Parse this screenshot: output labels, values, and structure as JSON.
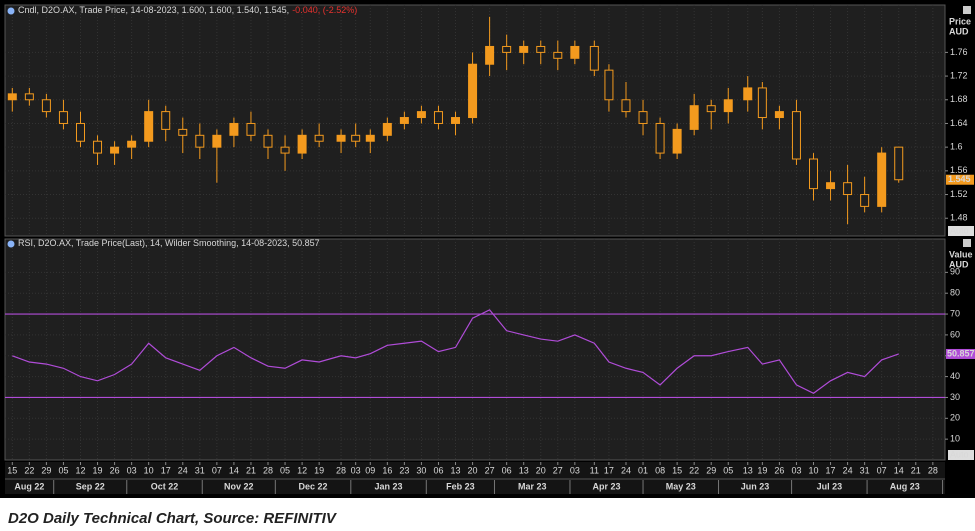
{
  "chart_data": [
    {
      "type": "candlestick",
      "header": "Cndl, D2O.AX, Trade Price, 14-08-2023, 1.600, 1.600, 1.540, 1.545,",
      "change": "-0.040, (-2.52%)",
      "axis_title": "Price",
      "axis_unit": "AUD",
      "scale_button": "Auto",
      "color": "#f39a1e",
      "change_color": "#e8322e",
      "x": [
        "2022-08-15",
        "2022-08-22",
        "2022-08-29",
        "2022-09-05",
        "2022-09-12",
        "2022-09-19",
        "2022-09-26",
        "2022-10-03",
        "2022-10-10",
        "2022-10-17",
        "2022-10-24",
        "2022-10-31",
        "2022-11-07",
        "2022-11-14",
        "2022-11-21",
        "2022-11-28",
        "2022-12-05",
        "2022-12-12",
        "2022-12-19",
        "2022-12-28",
        "2023-01-03",
        "2023-01-09",
        "2023-01-16",
        "2023-01-23",
        "2023-01-30",
        "2023-02-06",
        "2023-02-13",
        "2023-02-20",
        "2023-02-27",
        "2023-03-06",
        "2023-03-13",
        "2023-03-20",
        "2023-03-27",
        "2023-04-03",
        "2023-04-11",
        "2023-04-17",
        "2023-04-24",
        "2023-05-01",
        "2023-05-08",
        "2023-05-15",
        "2023-05-22",
        "2023-05-29",
        "2023-06-05",
        "2023-06-13",
        "2023-06-19",
        "2023-06-26",
        "2023-07-03",
        "2023-07-10",
        "2023-07-17",
        "2023-07-24",
        "2023-07-31",
        "2023-08-07",
        "2023-08-14"
      ],
      "open": [
        1.68,
        1.69,
        1.68,
        1.66,
        1.64,
        1.61,
        1.59,
        1.6,
        1.61,
        1.66,
        1.63,
        1.62,
        1.6,
        1.62,
        1.64,
        1.62,
        1.6,
        1.59,
        1.62,
        1.61,
        1.62,
        1.61,
        1.62,
        1.64,
        1.65,
        1.66,
        1.64,
        1.65,
        1.74,
        1.77,
        1.76,
        1.77,
        1.76,
        1.75,
        1.77,
        1.73,
        1.68,
        1.66,
        1.64,
        1.59,
        1.63,
        1.67,
        1.66,
        1.68,
        1.7,
        1.65,
        1.66,
        1.58,
        1.53,
        1.54,
        1.52,
        1.5,
        1.6
      ],
      "high": [
        1.7,
        1.7,
        1.69,
        1.68,
        1.66,
        1.62,
        1.61,
        1.62,
        1.68,
        1.67,
        1.65,
        1.64,
        1.63,
        1.65,
        1.66,
        1.63,
        1.62,
        1.63,
        1.64,
        1.63,
        1.64,
        1.63,
        1.65,
        1.66,
        1.67,
        1.67,
        1.66,
        1.76,
        1.82,
        1.79,
        1.78,
        1.78,
        1.78,
        1.78,
        1.78,
        1.74,
        1.71,
        1.68,
        1.65,
        1.64,
        1.69,
        1.68,
        1.7,
        1.72,
        1.71,
        1.67,
        1.68,
        1.59,
        1.56,
        1.57,
        1.55,
        1.6,
        1.6
      ],
      "low": [
        1.66,
        1.67,
        1.65,
        1.63,
        1.6,
        1.57,
        1.57,
        1.58,
        1.6,
        1.61,
        1.59,
        1.58,
        1.54,
        1.6,
        1.61,
        1.58,
        1.56,
        1.58,
        1.6,
        1.59,
        1.6,
        1.59,
        1.61,
        1.63,
        1.64,
        1.63,
        1.62,
        1.64,
        1.72,
        1.73,
        1.74,
        1.74,
        1.73,
        1.74,
        1.72,
        1.66,
        1.65,
        1.62,
        1.58,
        1.58,
        1.62,
        1.63,
        1.64,
        1.66,
        1.63,
        1.63,
        1.57,
        1.51,
        1.51,
        1.47,
        1.49,
        1.49,
        1.54
      ],
      "close": [
        1.69,
        1.68,
        1.66,
        1.64,
        1.61,
        1.59,
        1.6,
        1.61,
        1.66,
        1.63,
        1.62,
        1.6,
        1.62,
        1.64,
        1.62,
        1.6,
        1.59,
        1.62,
        1.61,
        1.62,
        1.61,
        1.62,
        1.64,
        1.65,
        1.66,
        1.64,
        1.65,
        1.74,
        1.77,
        1.76,
        1.77,
        1.76,
        1.75,
        1.77,
        1.73,
        1.68,
        1.66,
        1.64,
        1.59,
        1.63,
        1.67,
        1.66,
        1.68,
        1.7,
        1.65,
        1.66,
        1.58,
        1.53,
        1.54,
        1.52,
        1.5,
        1.59,
        1.545
      ],
      "xlim": [
        "2022-08-12",
        "2023-09-02"
      ],
      "ylim": [
        1.45,
        1.84
      ],
      "yticks": [
        1.48,
        1.52,
        1.56,
        1.6,
        1.64,
        1.68,
        1.72,
        1.76
      ],
      "grid": true
    },
    {
      "type": "line",
      "header": "RSI, D2O.AX, Trade Price(Last), 14, Wilder Smoothing, 14-08-2023, 50.857",
      "axis_title": "Value",
      "axis_unit": "AUD",
      "scale_button": "Auto",
      "color": "#b04cd8",
      "x": [
        "2022-08-15",
        "2022-08-22",
        "2022-08-29",
        "2022-09-05",
        "2022-09-12",
        "2022-09-19",
        "2022-09-26",
        "2022-10-03",
        "2022-10-10",
        "2022-10-17",
        "2022-10-24",
        "2022-10-31",
        "2022-11-07",
        "2022-11-14",
        "2022-11-21",
        "2022-11-28",
        "2022-12-05",
        "2022-12-12",
        "2022-12-19",
        "2022-12-28",
        "2023-01-03",
        "2023-01-09",
        "2023-01-16",
        "2023-01-23",
        "2023-01-30",
        "2023-02-06",
        "2023-02-13",
        "2023-02-20",
        "2023-02-27",
        "2023-03-06",
        "2023-03-13",
        "2023-03-20",
        "2023-03-27",
        "2023-04-03",
        "2023-04-11",
        "2023-04-17",
        "2023-04-24",
        "2023-05-01",
        "2023-05-08",
        "2023-05-15",
        "2023-05-22",
        "2023-05-29",
        "2023-06-05",
        "2023-06-13",
        "2023-06-19",
        "2023-06-26",
        "2023-07-03",
        "2023-07-10",
        "2023-07-17",
        "2023-07-24",
        "2023-07-31",
        "2023-08-07",
        "2023-08-14"
      ],
      "values": [
        50,
        47,
        46,
        44,
        40,
        38,
        41,
        46,
        56,
        49,
        46,
        43,
        50,
        54,
        49,
        45,
        44,
        48,
        47,
        50,
        49,
        51,
        55,
        56,
        57,
        52,
        54,
        68,
        72,
        62,
        60,
        58,
        57,
        60,
        56,
        47,
        44,
        42,
        36,
        44,
        50,
        50,
        52,
        54,
        46,
        48,
        36,
        32,
        38,
        42,
        40,
        48,
        50.857
      ],
      "reference_lines": [
        70,
        30
      ],
      "xlim": [
        "2022-08-12",
        "2023-09-02"
      ],
      "ylim": [
        0,
        106
      ],
      "yticks": [
        10,
        20,
        30,
        40,
        50,
        60,
        70,
        80,
        90
      ],
      "grid": true,
      "xticks": [
        {
          "value": "2022-08-15",
          "label": "15"
        },
        {
          "value": "2022-08-22",
          "label": "22"
        },
        {
          "value": "2022-08-29",
          "label": "29"
        },
        {
          "value": "2022-09-05",
          "label": "05"
        },
        {
          "value": "2022-09-12",
          "label": "12"
        },
        {
          "value": "2022-09-19",
          "label": "19"
        },
        {
          "value": "2022-09-26",
          "label": "26"
        },
        {
          "value": "2022-10-03",
          "label": "03"
        },
        {
          "value": "2022-10-10",
          "label": "10"
        },
        {
          "value": "2022-10-17",
          "label": "17"
        },
        {
          "value": "2022-10-24",
          "label": "24"
        },
        {
          "value": "2022-10-31",
          "label": "31"
        },
        {
          "value": "2022-11-07",
          "label": "07"
        },
        {
          "value": "2022-11-14",
          "label": "14"
        },
        {
          "value": "2022-11-21",
          "label": "21"
        },
        {
          "value": "2022-11-28",
          "label": "28"
        },
        {
          "value": "2022-12-05",
          "label": "05"
        },
        {
          "value": "2022-12-12",
          "label": "12"
        },
        {
          "value": "2022-12-19",
          "label": "19"
        },
        {
          "value": "2022-12-28",
          "label": "28"
        },
        {
          "value": "2023-01-03",
          "label": "03"
        },
        {
          "value": "2023-01-09",
          "label": "09"
        },
        {
          "value": "2023-01-16",
          "label": "16"
        },
        {
          "value": "2023-01-23",
          "label": "23"
        },
        {
          "value": "2023-01-30",
          "label": "30"
        },
        {
          "value": "2023-02-06",
          "label": "06"
        },
        {
          "value": "2023-02-13",
          "label": "13"
        },
        {
          "value": "2023-02-20",
          "label": "20"
        },
        {
          "value": "2023-02-27",
          "label": "27"
        },
        {
          "value": "2023-03-06",
          "label": "06"
        },
        {
          "value": "2023-03-13",
          "label": "13"
        },
        {
          "value": "2023-03-20",
          "label": "20"
        },
        {
          "value": "2023-03-27",
          "label": "27"
        },
        {
          "value": "2023-04-03",
          "label": "03"
        },
        {
          "value": "2023-04-11",
          "label": "11"
        },
        {
          "value": "2023-04-17",
          "label": "17"
        },
        {
          "value": "2023-04-24",
          "label": "24"
        },
        {
          "value": "2023-05-01",
          "label": "01"
        },
        {
          "value": "2023-05-08",
          "label": "08"
        },
        {
          "value": "2023-05-15",
          "label": "15"
        },
        {
          "value": "2023-05-22",
          "label": "22"
        },
        {
          "value": "2023-05-29",
          "label": "29"
        },
        {
          "value": "2023-06-05",
          "label": "05"
        },
        {
          "value": "2023-06-13",
          "label": "13"
        },
        {
          "value": "2023-06-19",
          "label": "19"
        },
        {
          "value": "2023-06-26",
          "label": "26"
        },
        {
          "value": "2023-07-03",
          "label": "03"
        },
        {
          "value": "2023-07-10",
          "label": "10"
        },
        {
          "value": "2023-07-17",
          "label": "17"
        },
        {
          "value": "2023-07-24",
          "label": "24"
        },
        {
          "value": "2023-07-31",
          "label": "31"
        },
        {
          "value": "2023-08-07",
          "label": "07"
        },
        {
          "value": "2023-08-14",
          "label": "14"
        },
        {
          "value": "2023-08-21",
          "label": "21"
        },
        {
          "value": "2023-08-28",
          "label": "28"
        }
      ],
      "months": [
        {
          "value": "2022-08",
          "label": "Aug 22"
        },
        {
          "value": "2022-09",
          "label": "Sep 22"
        },
        {
          "value": "2022-10",
          "label": "Oct 22"
        },
        {
          "value": "2022-11",
          "label": "Nov 22"
        },
        {
          "value": "2022-12",
          "label": "Dec 22"
        },
        {
          "value": "2023-01",
          "label": "Jan 23"
        },
        {
          "value": "2023-02",
          "label": "Feb 23"
        },
        {
          "value": "2023-03",
          "label": "Mar 23"
        },
        {
          "value": "2023-04",
          "label": "Apr 23"
        },
        {
          "value": "2023-05",
          "label": "May 23"
        },
        {
          "value": "2023-06",
          "label": "Jun 23"
        },
        {
          "value": "2023-07",
          "label": "Jul 23"
        },
        {
          "value": "2023-08",
          "label": "Aug 23"
        }
      ]
    }
  ],
  "caption": "D2O Daily Technical Chart, Source: REFINITIV"
}
